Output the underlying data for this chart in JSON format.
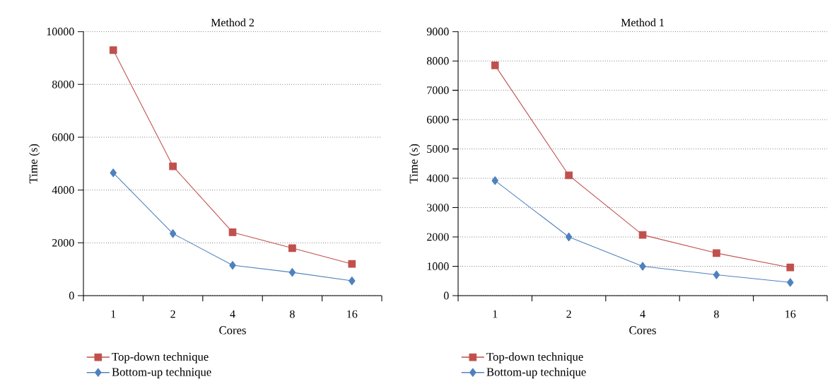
{
  "chart_data": [
    {
      "type": "line",
      "title": "Method 2",
      "xlabel": "Cores",
      "ylabel": "Time (s)",
      "categories": [
        "1",
        "2",
        "4",
        "8",
        "16"
      ],
      "ylim": [
        0,
        10000
      ],
      "yticks": [
        0,
        2000,
        4000,
        6000,
        8000,
        10000
      ],
      "grid": "y",
      "legend": "bottom",
      "line_style": "solid",
      "series": [
        {
          "name": "Top-down technique",
          "color": "#c0504d",
          "marker": "square",
          "values": [
            9300,
            4900,
            2400,
            1800,
            1200
          ]
        },
        {
          "name": "Bottom-up technique",
          "color": "#4f81bd",
          "marker": "diamond",
          "values": [
            4650,
            2350,
            1150,
            880,
            560
          ]
        }
      ]
    },
    {
      "type": "line",
      "title": "Method 1",
      "xlabel": "Cores",
      "ylabel": "Time (s)",
      "categories": [
        "1",
        "2",
        "4",
        "8",
        "16"
      ],
      "ylim": [
        0,
        9000
      ],
      "yticks": [
        0,
        1000,
        2000,
        3000,
        4000,
        5000,
        6000,
        7000,
        8000,
        9000
      ],
      "grid": "y",
      "legend": "bottom",
      "line_style": "solid",
      "series": [
        {
          "name": "Top-down technique",
          "color": "#c0504d",
          "marker": "square",
          "values": [
            7850,
            4100,
            2070,
            1450,
            960
          ]
        },
        {
          "name": "Bottom-up technique",
          "color": "#4f81bd",
          "marker": "diamond",
          "values": [
            3920,
            2000,
            1000,
            710,
            450
          ]
        }
      ]
    }
  ]
}
